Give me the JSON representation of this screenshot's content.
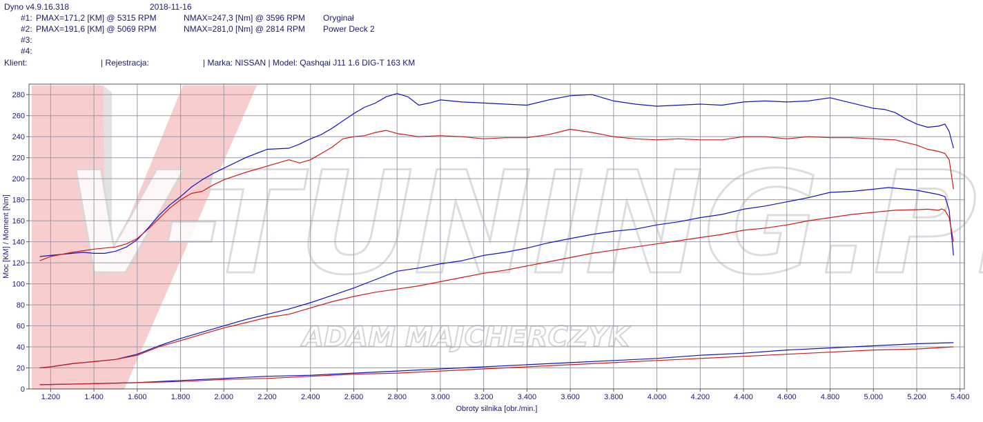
{
  "header": {
    "version": "Dyno v4.9.16.318",
    "date": "2018-11-16",
    "runs": [
      {
        "id": "#1:",
        "pmax": "PMAX=171,2 [KM] @ 5315 RPM",
        "nmax": "NMAX=247,3 [Nm] @ 3596 RPM",
        "label": "Oryginał"
      },
      {
        "id": "#2:",
        "pmax": "PMAX=191,6 [KM] @ 5069 RPM",
        "nmax": "NMAX=281,0 [Nm] @ 2814 RPM",
        "label": "Power Deck 2"
      },
      {
        "id": "#3:",
        "pmax": "",
        "nmax": "",
        "label": ""
      },
      {
        "id": "#4:",
        "pmax": "",
        "nmax": "",
        "label": ""
      }
    ],
    "client_label": "Klient:",
    "registration_label": "| Rejestracja:",
    "vehicle": "| Marka: NISSAN | Model: Qashqai J11 1.6 DIG-T 163 KM"
  },
  "watermark": {
    "brand_text": "V-TUNING.PL",
    "sub_text": "ADAM MAJCHERCZYK"
  },
  "colors": {
    "original": "#d01818",
    "tuned": "#1010c8",
    "grid": "#9a9aa8",
    "axis_text": "#1a1a6e",
    "watermark_fill": "#f4b8b8"
  },
  "chart_data": {
    "type": "line",
    "xlabel": "Obroty silnika [obr./min.]",
    "ylabel": "Moc [KM] / Moment [Nm]",
    "xlim": [
      1100,
      5420
    ],
    "ylim": [
      0,
      290
    ],
    "x_ticks": [
      1200,
      1400,
      1600,
      1800,
      2000,
      2200,
      2400,
      2600,
      2800,
      3000,
      3200,
      3400,
      3600,
      3800,
      4000,
      4200,
      4400,
      4600,
      4800,
      5000,
      5200,
      5400
    ],
    "x_tick_labels": [
      "1.200",
      "1.400",
      "1.600",
      "1.800",
      "2.000",
      "2.200",
      "2.400",
      "2.600",
      "2.800",
      "3.000",
      "3.200",
      "3.400",
      "3.600",
      "3.800",
      "4.000",
      "4.200",
      "4.400",
      "4.600",
      "4.800",
      "5.000",
      "5.200",
      "5.400"
    ],
    "y_ticks": [
      0,
      20,
      40,
      60,
      80,
      100,
      120,
      140,
      160,
      180,
      200,
      220,
      240,
      260,
      280
    ],
    "grid": true,
    "series": [
      {
        "run": "#2",
        "quantity": "torque",
        "color": "#1010c8",
        "x": [
          1150,
          1250,
          1300,
          1350,
          1400,
          1450,
          1500,
          1550,
          1600,
          1650,
          1700,
          1750,
          1800,
          1850,
          1900,
          1950,
          2000,
          2050,
          2100,
          2200,
          2300,
          2350,
          2400,
          2450,
          2500,
          2550,
          2600,
          2650,
          2700,
          2750,
          2800,
          2850,
          2900,
          2950,
          3000,
          3100,
          3200,
          3300,
          3400,
          3500,
          3600,
          3700,
          3800,
          3900,
          4000,
          4100,
          4200,
          4300,
          4400,
          4500,
          4600,
          4700,
          4800,
          4900,
          5000,
          5050,
          5100,
          5150,
          5200,
          5250,
          5300,
          5330,
          5350,
          5370
        ],
        "y": [
          126,
          128,
          129,
          130,
          129,
          129,
          131,
          135,
          142,
          153,
          165,
          175,
          183,
          192,
          199,
          205,
          210,
          215,
          220,
          228,
          229,
          233,
          238,
          242,
          248,
          255,
          262,
          268,
          272,
          278,
          281,
          278,
          270,
          272,
          275,
          273,
          272,
          271,
          270,
          275,
          279,
          280,
          274,
          271,
          269,
          270,
          271,
          270,
          273,
          274,
          273,
          274,
          277,
          272,
          267,
          266,
          263,
          257,
          252,
          249,
          250,
          252,
          245,
          229
        ]
      },
      {
        "run": "#1",
        "quantity": "torque",
        "color": "#d01818",
        "x": [
          1150,
          1200,
          1300,
          1400,
          1500,
          1550,
          1600,
          1650,
          1700,
          1750,
          1800,
          1850,
          1900,
          1950,
          2000,
          2100,
          2200,
          2250,
          2300,
          2350,
          2400,
          2450,
          2500,
          2550,
          2600,
          2650,
          2700,
          2750,
          2800,
          2900,
          3000,
          3100,
          3200,
          3300,
          3400,
          3500,
          3600,
          3700,
          3800,
          3900,
          4000,
          4100,
          4200,
          4300,
          4400,
          4500,
          4600,
          4700,
          4800,
          4900,
          5000,
          5100,
          5200,
          5250,
          5300,
          5330,
          5350,
          5370
        ],
        "y": [
          122,
          126,
          130,
          133,
          135,
          138,
          143,
          152,
          162,
          172,
          180,
          186,
          188,
          194,
          199,
          206,
          212,
          215,
          218,
          215,
          218,
          224,
          230,
          238,
          240,
          241,
          244,
          246,
          243,
          240,
          241,
          240,
          238,
          239,
          239,
          242,
          247,
          244,
          240,
          238,
          237,
          238,
          237,
          237,
          240,
          240,
          238,
          240,
          239,
          239,
          238,
          237,
          232,
          228,
          226,
          224,
          218,
          190
        ]
      },
      {
        "run": "#2",
        "quantity": "power",
        "color": "#1010c8",
        "x": [
          1150,
          1200,
          1300,
          1400,
          1500,
          1600,
          1700,
          1800,
          1900,
          2000,
          2100,
          2200,
          2300,
          2400,
          2500,
          2600,
          2700,
          2800,
          2900,
          3000,
          3100,
          3200,
          3300,
          3400,
          3500,
          3600,
          3700,
          3800,
          3900,
          4000,
          4100,
          4200,
          4300,
          4400,
          4500,
          4600,
          4700,
          4800,
          4900,
          5000,
          5069,
          5100,
          5200,
          5250,
          5300,
          5330,
          5350,
          5370
        ],
        "y": [
          20,
          21,
          24,
          26,
          28,
          33,
          41,
          48,
          54,
          60,
          66,
          71,
          76,
          82,
          89,
          96,
          104,
          112,
          115,
          119,
          122,
          127,
          130,
          134,
          139,
          143,
          147,
          150,
          152,
          156,
          159,
          163,
          166,
          171,
          174,
          178,
          182,
          187,
          188,
          190,
          191.6,
          191,
          189,
          187,
          185,
          183,
          170,
          127
        ]
      },
      {
        "run": "#1",
        "quantity": "power",
        "color": "#d01818",
        "x": [
          1150,
          1200,
          1300,
          1400,
          1500,
          1600,
          1700,
          1800,
          1900,
          2000,
          2100,
          2200,
          2300,
          2400,
          2500,
          2600,
          2700,
          2800,
          2900,
          3000,
          3100,
          3200,
          3300,
          3400,
          3500,
          3600,
          3700,
          3800,
          3900,
          4000,
          4100,
          4200,
          4300,
          4400,
          4500,
          4600,
          4700,
          4800,
          4900,
          5000,
          5100,
          5200,
          5250,
          5300,
          5315,
          5330,
          5350,
          5370
        ],
        "y": [
          20,
          21,
          24,
          26,
          28,
          32,
          40,
          46,
          52,
          58,
          63,
          68,
          71,
          77,
          83,
          88,
          92,
          95,
          98,
          102,
          106,
          110,
          113,
          117,
          121,
          125,
          129,
          132,
          135,
          138,
          141,
          144,
          147,
          151,
          153,
          156,
          160,
          163,
          166,
          168,
          170,
          170.5,
          171,
          170,
          171.2,
          170,
          163,
          140
        ]
      },
      {
        "run": "#2",
        "quantity": "loss",
        "color": "#1010c8",
        "x": [
          1150,
          1400,
          1600,
          1800,
          2000,
          2200,
          2400,
          2600,
          2800,
          3000,
          3200,
          3400,
          3600,
          3800,
          4000,
          4200,
          4400,
          4600,
          4800,
          5000,
          5200,
          5370
        ],
        "y": [
          4,
          5,
          6,
          8,
          10,
          12,
          13,
          15,
          17,
          19,
          21,
          23,
          25,
          27,
          29,
          32,
          34,
          37,
          39,
          41,
          43,
          44
        ]
      },
      {
        "run": "#1",
        "quantity": "loss",
        "color": "#d01818",
        "x": [
          1150,
          1400,
          1600,
          1800,
          2000,
          2200,
          2400,
          2600,
          2800,
          3000,
          3200,
          3400,
          3600,
          3800,
          4000,
          4200,
          4400,
          4600,
          4800,
          5000,
          5200,
          5370
        ],
        "y": [
          4,
          5,
          6,
          7,
          9,
          10,
          12,
          14,
          15,
          17,
          19,
          21,
          23,
          25,
          27,
          29,
          31,
          33,
          35,
          37,
          38,
          40
        ]
      }
    ]
  }
}
